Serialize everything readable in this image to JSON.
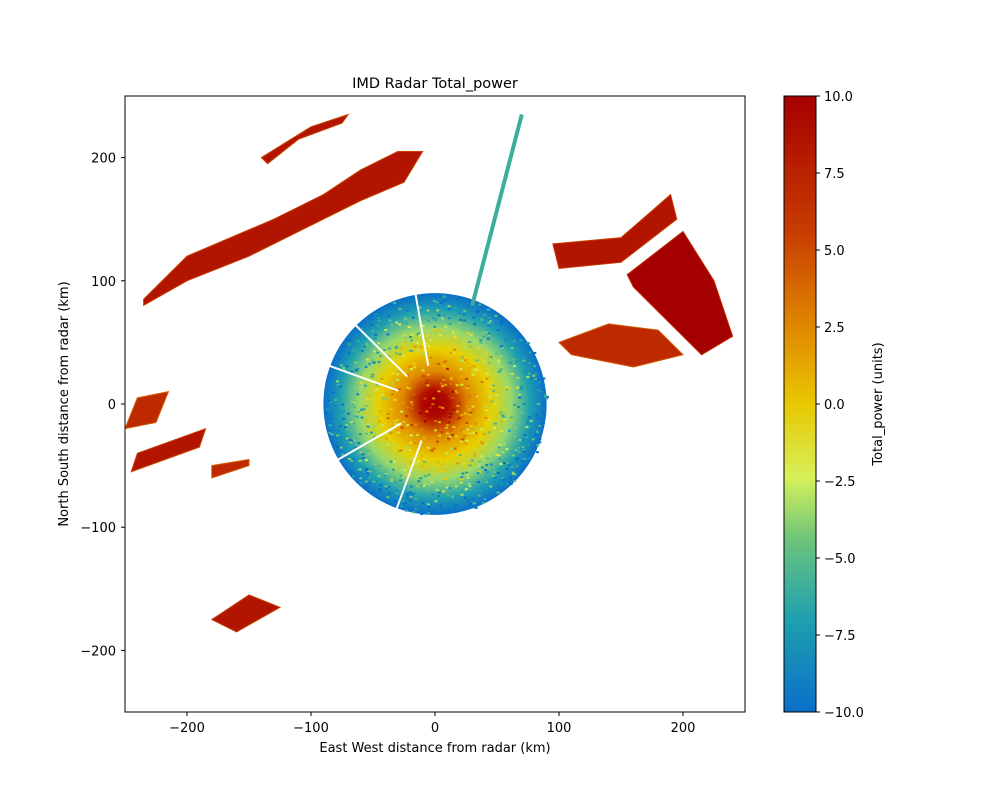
{
  "chart_data": {
    "type": "heatmap",
    "title": "IMD Radar Total_power",
    "xlabel": "East West distance from radar (km)",
    "ylabel": "North South distance from radar (km)",
    "xlim": [
      -250,
      250
    ],
    "ylim": [
      -250,
      250
    ],
    "xticks": [
      -200,
      -100,
      0,
      100,
      200
    ],
    "yticks": [
      -200,
      -100,
      0,
      100,
      200
    ],
    "xtick_labels": [
      "−200",
      "−100",
      "0",
      "100",
      "200"
    ],
    "ytick_labels": [
      "−200",
      "−100",
      "0",
      "100",
      "200"
    ],
    "colorbar": {
      "label": "Total_power (units)",
      "range": [
        -10.0,
        10.0
      ],
      "ticks": [
        -10.0,
        -7.5,
        -5.0,
        -2.5,
        0.0,
        2.5,
        5.0,
        7.5,
        10.0
      ],
      "tick_labels": [
        "−10.0",
        "−7.5",
        "−5.0",
        "−2.5",
        "0.0",
        "2.5",
        "5.0",
        "7.5",
        "10.0"
      ],
      "colormap": [
        "#0a6fc8",
        "#1ea0b0",
        "#6cc47a",
        "#d6f05a",
        "#e8c800",
        "#e08a00",
        "#c83c00",
        "#a50000"
      ]
    },
    "grid": false,
    "echo_regions": [
      {
        "name": "central-disc",
        "center_km": [
          0,
          0
        ],
        "radius_km": 90,
        "value_range": [
          -10,
          10
        ],
        "core_value": 10
      },
      {
        "name": "nw-band",
        "km_polygon": [
          [
            -235,
            85
          ],
          [
            -200,
            120
          ],
          [
            -130,
            150
          ],
          [
            -90,
            170
          ],
          [
            -60,
            190
          ],
          [
            -30,
            205
          ],
          [
            -10,
            205
          ],
          [
            -25,
            180
          ],
          [
            -60,
            165
          ],
          [
            -100,
            145
          ],
          [
            -150,
            120
          ],
          [
            -200,
            100
          ],
          [
            -235,
            80
          ]
        ],
        "value": 9
      },
      {
        "name": "north-strip",
        "km_polygon": [
          [
            -140,
            200
          ],
          [
            -100,
            225
          ],
          [
            -70,
            235
          ],
          [
            -75,
            228
          ],
          [
            -110,
            215
          ],
          [
            -135,
            195
          ]
        ],
        "value": 9
      },
      {
        "name": "ne-block",
        "km_polygon": [
          [
            155,
            105
          ],
          [
            200,
            140
          ],
          [
            225,
            100
          ],
          [
            240,
            55
          ],
          [
            215,
            40
          ],
          [
            185,
            70
          ],
          [
            160,
            95
          ]
        ],
        "value": 10
      },
      {
        "name": "ne-cells",
        "km_polygon": [
          [
            95,
            130
          ],
          [
            150,
            135
          ],
          [
            190,
            170
          ],
          [
            195,
            150
          ],
          [
            150,
            115
          ],
          [
            100,
            110
          ]
        ],
        "value": 9
      },
      {
        "name": "east-cells",
        "km_polygon": [
          [
            100,
            50
          ],
          [
            140,
            65
          ],
          [
            180,
            60
          ],
          [
            200,
            40
          ],
          [
            160,
            30
          ],
          [
            110,
            40
          ]
        ],
        "value": 8
      },
      {
        "name": "west-cell-1",
        "km_polygon": [
          [
            -250,
            -20
          ],
          [
            -240,
            5
          ],
          [
            -215,
            10
          ],
          [
            -225,
            -15
          ]
        ],
        "value": 8
      },
      {
        "name": "west-cell-2",
        "km_polygon": [
          [
            -245,
            -55
          ],
          [
            -190,
            -35
          ],
          [
            -185,
            -20
          ],
          [
            -240,
            -40
          ]
        ],
        "value": 9
      },
      {
        "name": "west-cell-3",
        "km_polygon": [
          [
            -180,
            -60
          ],
          [
            -150,
            -50
          ],
          [
            -150,
            -45
          ],
          [
            -180,
            -50
          ]
        ],
        "value": 8
      },
      {
        "name": "sw-cell",
        "km_polygon": [
          [
            -180,
            -175
          ],
          [
            -160,
            -185
          ],
          [
            -125,
            -165
          ],
          [
            -150,
            -155
          ]
        ],
        "value": 9
      },
      {
        "name": "radial-spike",
        "km_polyline": [
          [
            30,
            80
          ],
          [
            70,
            235
          ]
        ],
        "value": -6
      }
    ]
  }
}
